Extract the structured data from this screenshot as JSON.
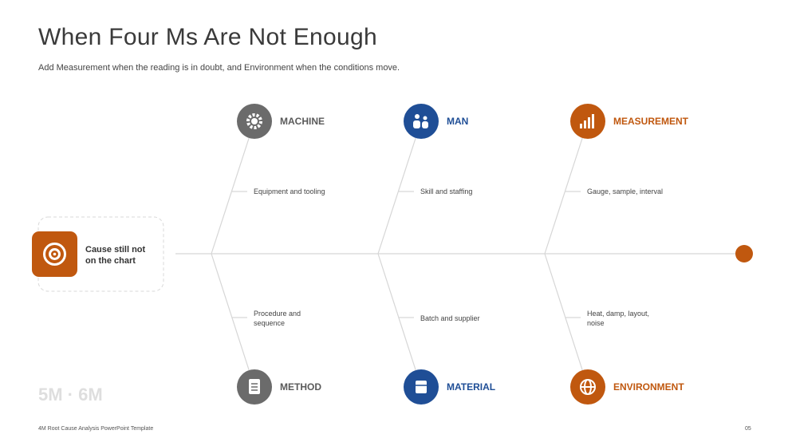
{
  "header": {
    "title": "When Four Ms Are Not Enough",
    "subtitle": "Add Measurement when the reading is in doubt, and Environment when the conditions move."
  },
  "problem": {
    "label": "Cause still not on the chart"
  },
  "branches": [
    {
      "label": "MACHINE",
      "cause": "Equipment and tooling"
    },
    {
      "label": "MAN",
      "cause": "Skill and staffing"
    },
    {
      "label": "MEASUREMENT",
      "cause": "Gauge, sample, interval"
    },
    {
      "label": "METHOD",
      "cause": "Procedure and sequence"
    },
    {
      "label": "MATERIAL",
      "cause": "Batch and supplier"
    },
    {
      "label": "ENVIRONMENT",
      "cause": "Heat, damp, layout, noise"
    }
  ],
  "watermark": "5M · 6M",
  "footer": {
    "text": "4M Root Cause Analysis PowerPoint Template",
    "page": "05"
  }
}
